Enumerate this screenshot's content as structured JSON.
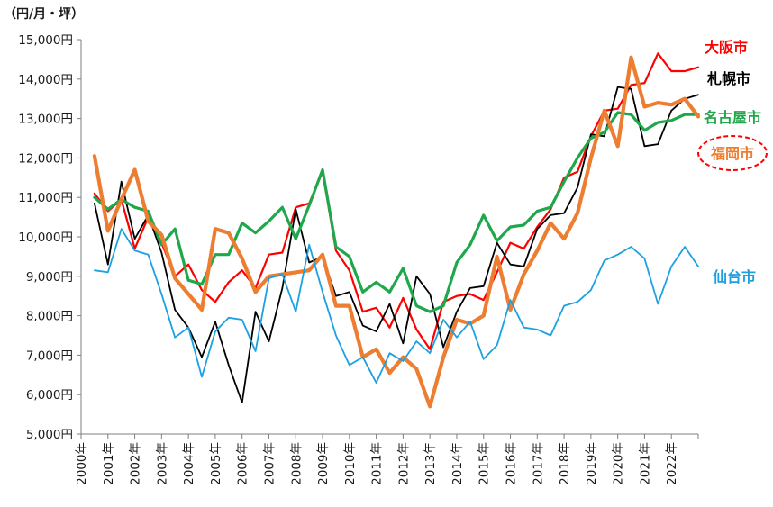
{
  "chart_data": {
    "type": "line",
    "unit_label": "（円/月・坪）",
    "ylim": [
      5000,
      15000
    ],
    "y_ticks": [
      {
        "value": 5000,
        "label": "5,000円"
      },
      {
        "value": 6000,
        "label": "6,000円"
      },
      {
        "value": 7000,
        "label": "7,000円"
      },
      {
        "value": 8000,
        "label": "8,000円"
      },
      {
        "value": 9000,
        "label": "9,000円"
      },
      {
        "value": 10000,
        "label": "10,000円"
      },
      {
        "value": 11000,
        "label": "11,000円"
      },
      {
        "value": 12000,
        "label": "12,000円"
      },
      {
        "value": 13000,
        "label": "13,000円"
      },
      {
        "value": 14000,
        "label": "14,000円"
      },
      {
        "value": 15000,
        "label": "15,000円"
      }
    ],
    "xlim": [
      2000.0,
      2023.0
    ],
    "x_ticks": [
      {
        "value": 2000,
        "label": "2000年"
      },
      {
        "value": 2001,
        "label": "2001年"
      },
      {
        "value": 2002,
        "label": "2002年"
      },
      {
        "value": 2003,
        "label": "2003年"
      },
      {
        "value": 2004,
        "label": "2004年"
      },
      {
        "value": 2005,
        "label": "2005年"
      },
      {
        "value": 2006,
        "label": "2006年"
      },
      {
        "value": 2007,
        "label": "2007年"
      },
      {
        "value": 2008,
        "label": "2008年"
      },
      {
        "value": 2009,
        "label": "2009年"
      },
      {
        "value": 2010,
        "label": "2010年"
      },
      {
        "value": 2011,
        "label": "2011年"
      },
      {
        "value": 2012,
        "label": "2012年"
      },
      {
        "value": 2013,
        "label": "2013年"
      },
      {
        "value": 2014,
        "label": "2014年"
      },
      {
        "value": 2015,
        "label": "2015年"
      },
      {
        "value": 2016,
        "label": "2016年"
      },
      {
        "value": 2017,
        "label": "2017年"
      },
      {
        "value": 2018,
        "label": "2018年"
      },
      {
        "value": 2019,
        "label": "2019年"
      },
      {
        "value": 2020,
        "label": "2020年"
      },
      {
        "value": 2021,
        "label": "2021年"
      },
      {
        "value": 2022,
        "label": "2022年"
      }
    ],
    "x": [
      2000.5,
      2001.0,
      2001.5,
      2002.0,
      2002.5,
      2003.0,
      2003.5,
      2004.0,
      2004.5,
      2005.0,
      2005.5,
      2006.0,
      2006.5,
      2007.0,
      2007.5,
      2008.0,
      2008.5,
      2009.0,
      2009.5,
      2010.0,
      2010.5,
      2011.0,
      2011.5,
      2012.0,
      2012.5,
      2013.0,
      2013.5,
      2014.0,
      2014.5,
      2015.0,
      2015.5,
      2016.0,
      2016.5,
      2017.0,
      2017.5,
      2018.0,
      2018.5,
      2019.0,
      2019.5,
      2020.0,
      2020.5,
      2021.0,
      2021.5,
      2022.0,
      2022.5,
      2023.0
    ],
    "series": [
      {
        "name": "大阪市",
        "color": "#ff0000",
        "stroke_width": 2.2,
        "emphasis": false,
        "values": [
          11100,
          10650,
          10950,
          9700,
          10500,
          9850,
          9000,
          9300,
          8650,
          8350,
          8850,
          9150,
          8700,
          9550,
          9600,
          10750,
          10850,
          11650,
          9650,
          9150,
          8100,
          8200,
          7700,
          8450,
          7650,
          7150,
          8350,
          8500,
          8550,
          8400,
          9100,
          9850,
          9700,
          10250,
          10700,
          11500,
          11650,
          12550,
          13200,
          13250,
          13850,
          13900,
          14650,
          14200,
          14200,
          14300
        ]
      },
      {
        "name": "札幌市",
        "color": "#000000",
        "stroke_width": 1.8,
        "emphasis": false,
        "values": [
          10850,
          9300,
          11400,
          9950,
          10550,
          9600,
          8150,
          7700,
          6950,
          7850,
          6750,
          5800,
          8100,
          7350,
          8700,
          10700,
          9350,
          9500,
          8500,
          8600,
          7750,
          7600,
          8300,
          7300,
          9000,
          8550,
          7200,
          8100,
          8700,
          8750,
          9850,
          9300,
          9250,
          10200,
          10550,
          10600,
          11250,
          12600,
          12550,
          13800,
          13750,
          12300,
          12350,
          13200,
          13500,
          13600
        ]
      },
      {
        "name": "名古屋市",
        "color": "#1fa84b",
        "stroke_width": 3.2,
        "emphasis": false,
        "values": [
          11000,
          10700,
          10950,
          10750,
          10650,
          9800,
          10200,
          8900,
          8800,
          9550,
          9550,
          10350,
          10100,
          10400,
          10750,
          9950,
          10800,
          11700,
          9750,
          9500,
          8600,
          8850,
          8600,
          9200,
          8250,
          8100,
          8250,
          9350,
          9800,
          10550,
          9900,
          10250,
          10300,
          10650,
          10750,
          11400,
          12000,
          12500,
          12650,
          13150,
          13100,
          12700,
          12900,
          12950,
          13100,
          13100
        ]
      },
      {
        "name": "福岡市",
        "color": "#ed7d31",
        "stroke_width": 4.2,
        "emphasis": true,
        "values": [
          12050,
          10150,
          10950,
          11700,
          10400,
          10050,
          8950,
          8550,
          8150,
          10200,
          10100,
          9450,
          8600,
          9000,
          9050,
          9100,
          9150,
          9550,
          8250,
          8250,
          6950,
          7150,
          6550,
          6950,
          6650,
          5700,
          6950,
          7900,
          7800,
          8000,
          9500,
          8150,
          9050,
          9650,
          10350,
          9950,
          10600,
          12000,
          13200,
          12300,
          14550,
          13300,
          13400,
          13350,
          13500,
          13050
        ]
      },
      {
        "name": "仙台市",
        "color": "#1ba1e2",
        "stroke_width": 1.8,
        "emphasis": false,
        "values": [
          9150,
          9100,
          10200,
          9650,
          9550,
          8550,
          7450,
          7700,
          6450,
          7600,
          7950,
          7900,
          7100,
          8950,
          9050,
          8100,
          9800,
          8600,
          7500,
          6750,
          6950,
          6300,
          7050,
          6850,
          7350,
          7050,
          7900,
          7450,
          7850,
          6900,
          7250,
          8400,
          7700,
          7650,
          7500,
          8250,
          8350,
          8650,
          9400,
          9550,
          9750,
          9450,
          8300,
          9250,
          9750,
          9250
        ]
      }
    ],
    "grid": false
  }
}
